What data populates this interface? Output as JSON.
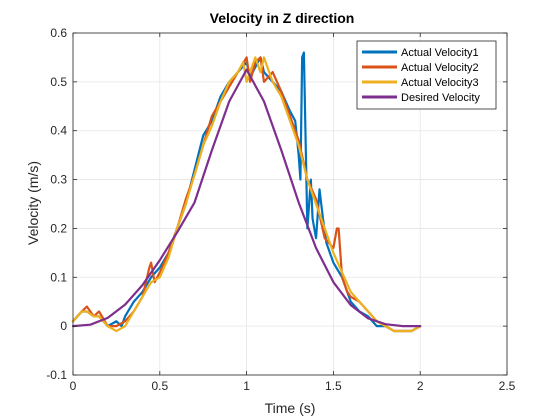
{
  "chart_data": {
    "type": "line",
    "title": "Velocity in Z direction",
    "xlabel": "Time (s)",
    "ylabel": "Velocity (m/s)",
    "xlim": [
      0,
      2.5
    ],
    "ylim": [
      -0.1,
      0.6
    ],
    "xticks": [
      0,
      0.5,
      1,
      1.5,
      2,
      2.5
    ],
    "xtick_labels": [
      "0",
      "0.5",
      "1",
      "1.5",
      "2",
      "2.5"
    ],
    "yticks": [
      -0.1,
      0,
      0.1,
      0.2,
      0.3,
      0.4,
      0.5,
      0.6
    ],
    "ytick_labels": [
      "-0.1",
      "0",
      "0.1",
      "0.2",
      "0.3",
      "0.4",
      "0.5",
      "0.6"
    ],
    "grid": true,
    "legend_position": "top-right",
    "series": [
      {
        "name": "Actual Velocity1",
        "color": "#0072BD",
        "x": [
          0,
          0.05,
          0.08,
          0.12,
          0.15,
          0.2,
          0.25,
          0.28,
          0.3,
          0.35,
          0.4,
          0.45,
          0.5,
          0.55,
          0.6,
          0.65,
          0.7,
          0.75,
          0.8,
          0.85,
          0.9,
          0.95,
          1.0,
          1.02,
          1.05,
          1.08,
          1.1,
          1.15,
          1.2,
          1.25,
          1.28,
          1.3,
          1.31,
          1.32,
          1.33,
          1.34,
          1.35,
          1.36,
          1.37,
          1.38,
          1.4,
          1.42,
          1.44,
          1.46,
          1.48,
          1.5,
          1.55,
          1.6,
          1.65,
          1.7,
          1.75,
          1.8,
          1.85,
          1.9,
          1.95,
          2.0
        ],
        "y": [
          0.01,
          0.03,
          0.03,
          0.02,
          0.02,
          0.0,
          0.01,
          0.0,
          0.02,
          0.05,
          0.07,
          0.1,
          0.12,
          0.15,
          0.2,
          0.25,
          0.32,
          0.39,
          0.42,
          0.47,
          0.5,
          0.52,
          0.54,
          0.51,
          0.53,
          0.55,
          0.52,
          0.5,
          0.48,
          0.44,
          0.42,
          0.35,
          0.3,
          0.55,
          0.56,
          0.38,
          0.2,
          0.25,
          0.3,
          0.22,
          0.18,
          0.28,
          0.22,
          0.17,
          0.15,
          0.13,
          0.1,
          0.05,
          0.03,
          0.02,
          0.0,
          0.0,
          -0.01,
          -0.01,
          -0.01,
          0.0
        ]
      },
      {
        "name": "Actual Velocity2",
        "color": "#D95319",
        "x": [
          0,
          0.05,
          0.08,
          0.12,
          0.15,
          0.2,
          0.25,
          0.3,
          0.35,
          0.4,
          0.44,
          0.45,
          0.47,
          0.5,
          0.55,
          0.6,
          0.65,
          0.7,
          0.75,
          0.8,
          0.85,
          0.9,
          0.95,
          1.0,
          1.02,
          1.05,
          1.08,
          1.1,
          1.15,
          1.2,
          1.25,
          1.3,
          1.35,
          1.4,
          1.45,
          1.5,
          1.52,
          1.53,
          1.55,
          1.58,
          1.6,
          1.65,
          1.7,
          1.75,
          1.8,
          1.85,
          1.9,
          1.95,
          2.0
        ],
        "y": [
          0.01,
          0.03,
          0.04,
          0.02,
          0.03,
          0.0,
          0.0,
          0.01,
          0.03,
          0.06,
          0.12,
          0.13,
          0.09,
          0.11,
          0.15,
          0.2,
          0.26,
          0.31,
          0.37,
          0.43,
          0.46,
          0.49,
          0.52,
          0.55,
          0.5,
          0.54,
          0.55,
          0.5,
          0.52,
          0.48,
          0.43,
          0.38,
          0.3,
          0.26,
          0.18,
          0.16,
          0.2,
          0.2,
          0.1,
          0.07,
          0.06,
          0.05,
          0.03,
          0.01,
          0.0,
          -0.01,
          -0.01,
          -0.01,
          0.0
        ]
      },
      {
        "name": "Actual Velocity3",
        "color": "#EDB120",
        "x": [
          0,
          0.05,
          0.08,
          0.12,
          0.15,
          0.2,
          0.25,
          0.3,
          0.35,
          0.4,
          0.45,
          0.5,
          0.55,
          0.6,
          0.65,
          0.7,
          0.75,
          0.8,
          0.85,
          0.9,
          0.95,
          0.98,
          1.0,
          1.03,
          1.05,
          1.08,
          1.1,
          1.15,
          1.2,
          1.25,
          1.3,
          1.35,
          1.4,
          1.45,
          1.5,
          1.55,
          1.6,
          1.65,
          1.7,
          1.75,
          1.8,
          1.85,
          1.9,
          1.95,
          2.0
        ],
        "y": [
          0.01,
          0.03,
          0.03,
          0.02,
          0.02,
          0.0,
          -0.01,
          0.0,
          0.03,
          0.06,
          0.09,
          0.1,
          0.14,
          0.2,
          0.25,
          0.31,
          0.37,
          0.41,
          0.46,
          0.5,
          0.52,
          0.54,
          0.5,
          0.53,
          0.55,
          0.52,
          0.55,
          0.5,
          0.47,
          0.42,
          0.37,
          0.3,
          0.25,
          0.2,
          0.15,
          0.11,
          0.07,
          0.05,
          0.03,
          0.01,
          0.0,
          -0.01,
          -0.01,
          -0.01,
          0.0
        ]
      },
      {
        "name": "Desired Velocity",
        "color": "#7E2F8E",
        "x": [
          0,
          0.1,
          0.2,
          0.3,
          0.4,
          0.5,
          0.6,
          0.7,
          0.8,
          0.9,
          1.0,
          1.1,
          1.2,
          1.3,
          1.4,
          1.5,
          1.6,
          1.7,
          1.8,
          1.9,
          2.0
        ],
        "y": [
          0.0,
          0.003,
          0.017,
          0.044,
          0.084,
          0.135,
          0.192,
          0.253,
          0.36,
          0.46,
          0.525,
          0.46,
          0.36,
          0.253,
          0.16,
          0.09,
          0.043,
          0.016,
          0.004,
          0.0,
          0.0
        ]
      }
    ]
  }
}
